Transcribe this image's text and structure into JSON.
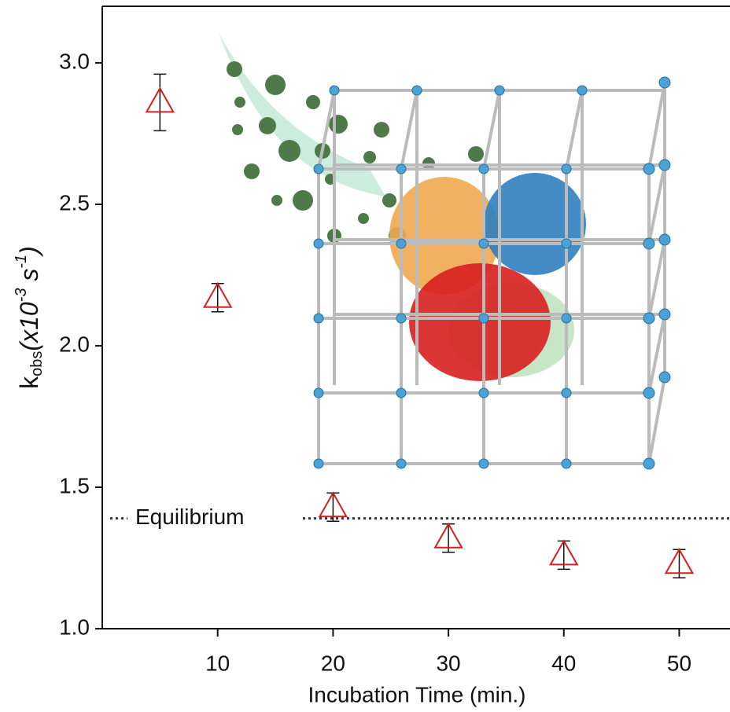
{
  "chart_data": {
    "type": "scatter",
    "xlabel": "Incubation Time (min.)",
    "ylabel": {
      "base": "k",
      "sub": "obs",
      "open": "(x10",
      "sup1": "-3",
      "unit": " s",
      "sup2": "-1",
      "close": ")"
    },
    "x": [
      5,
      10,
      20,
      30,
      40,
      50
    ],
    "series": [
      {
        "values": [
          2.86,
          2.17,
          1.43,
          1.32,
          1.26,
          1.23
        ],
        "errors": [
          0.1,
          0.05,
          0.05,
          0.05,
          0.05,
          0.05
        ],
        "color": "#d62020"
      }
    ],
    "xlim": [
      0,
      54.4
    ],
    "ylim": [
      1.0,
      3.2
    ],
    "xticks": [
      10,
      20,
      30,
      40,
      50
    ],
    "yticks": [
      {
        "value": 1,
        "label": "1.0"
      },
      {
        "value": 1.5,
        "label": "1.5"
      },
      {
        "value": 2,
        "label": "2.0"
      },
      {
        "value": 2.5,
        "label": "2.5"
      },
      {
        "value": 3,
        "label": "3.0"
      }
    ],
    "reference_line": {
      "label": "Equilibrium",
      "value": 1.39
    }
  }
}
